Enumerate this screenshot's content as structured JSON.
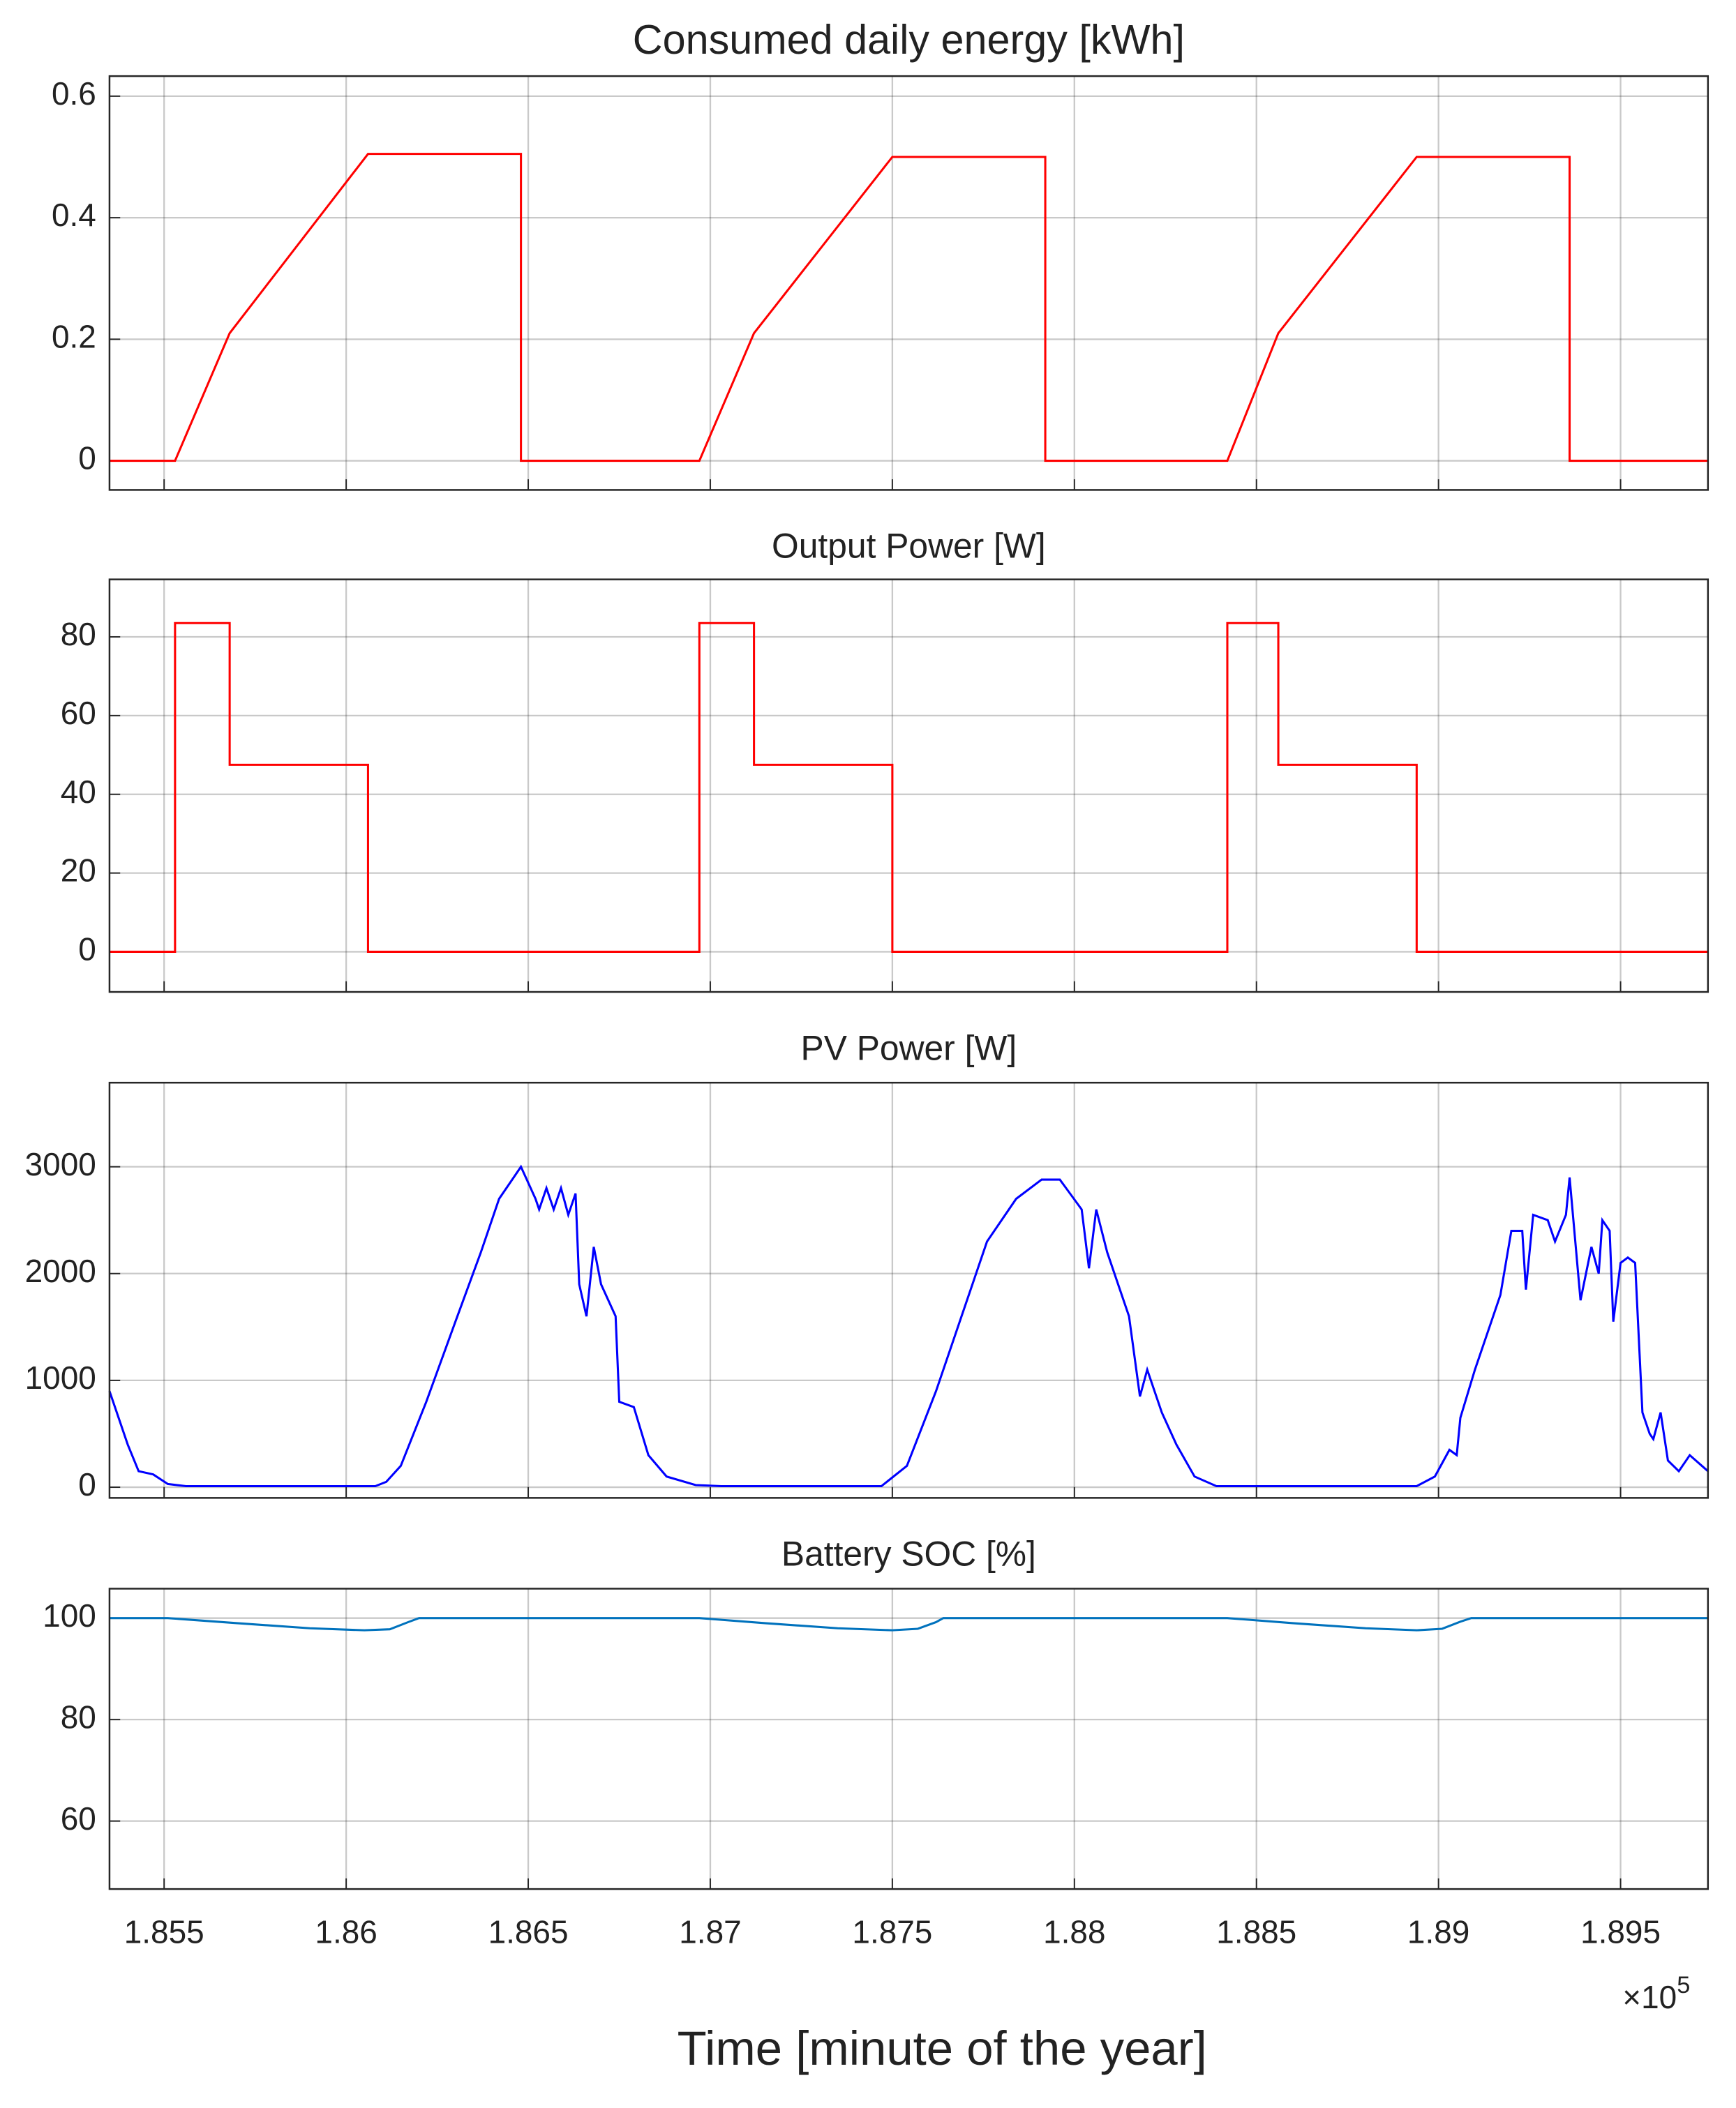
{
  "chart_data": [
    {
      "type": "line",
      "title": "Consumed daily energy [kWh]",
      "x": [
        1.8535,
        1.8553,
        1.8568,
        1.8606,
        1.8648,
        1.8648,
        1.8697,
        1.8712,
        1.875,
        1.8792,
        1.8792,
        1.8842,
        1.8856,
        1.8894,
        1.8936,
        1.8936,
        1.8974
      ],
      "series": [
        {
          "color": "#ff0000",
          "values": [
            0,
            0,
            0.21,
            0.505,
            0.505,
            0,
            0,
            0.21,
            0.5,
            0.5,
            0,
            0,
            0.21,
            0.5,
            0.5,
            0,
            0
          ]
        }
      ],
      "xlim": [
        1.8535,
        1.8974
      ],
      "xticks": [
        1.855,
        1.86,
        1.865,
        1.87,
        1.875,
        1.88,
        1.885,
        1.89,
        1.895
      ],
      "ylim": [
        -0.048,
        0.633
      ],
      "yticks": [
        0,
        0.2,
        0.4,
        0.6
      ],
      "grid": true
    },
    {
      "type": "line",
      "title": "Output Power [W]",
      "x": [
        1.8535,
        1.8553,
        1.8553,
        1.8568,
        1.8568,
        1.8606,
        1.8606,
        1.8697,
        1.8697,
        1.8712,
        1.8712,
        1.875,
        1.875,
        1.8842,
        1.8842,
        1.8856,
        1.8856,
        1.8894,
        1.8894,
        1.8974
      ],
      "series": [
        {
          "color": "#ff0000",
          "values": [
            0,
            0,
            83.5,
            83.5,
            47.5,
            47.5,
            0,
            0,
            83.5,
            83.5,
            47.5,
            47.5,
            0,
            0,
            83.5,
            83.5,
            47.5,
            47.5,
            0,
            0
          ]
        }
      ],
      "xlim": [
        1.8535,
        1.8974
      ],
      "xticks": [
        1.855,
        1.86,
        1.865,
        1.87,
        1.875,
        1.88,
        1.885,
        1.89,
        1.895
      ],
      "ylim": [
        -10.2,
        94.6
      ],
      "yticks": [
        0,
        20,
        40,
        60,
        80
      ],
      "grid": true
    },
    {
      "type": "line",
      "title": "PV Power [W]",
      "x": [
        1.8535,
        1.854,
        1.8543,
        1.8547,
        1.8551,
        1.8556,
        1.8578,
        1.8608,
        1.8611,
        1.8615,
        1.8622,
        1.863,
        1.8637,
        1.8642,
        1.8646,
        1.8648,
        1.8652,
        1.8653,
        1.8655,
        1.8657,
        1.8659,
        1.8661,
        1.8663,
        1.8664,
        1.8666,
        1.8668,
        1.867,
        1.8674,
        1.8675,
        1.8679,
        1.8683,
        1.8688,
        1.8696,
        1.8703,
        1.8747,
        1.8754,
        1.8762,
        1.8769,
        1.8776,
        1.8784,
        1.8791,
        1.8796,
        1.8802,
        1.8804,
        1.8806,
        1.8809,
        1.8815,
        1.8818,
        1.882,
        1.8824,
        1.8828,
        1.8833,
        1.8839,
        1.8894,
        1.8899,
        1.8903,
        1.8905,
        1.8906,
        1.891,
        1.8914,
        1.8917,
        1.892,
        1.8923,
        1.8924,
        1.8926,
        1.893,
        1.8932,
        1.8935,
        1.8936,
        1.8939,
        1.8942,
        1.8944,
        1.8945,
        1.8947,
        1.8948,
        1.895,
        1.8952,
        1.8954,
        1.8956,
        1.8958,
        1.8959,
        1.8961,
        1.8963,
        1.8966,
        1.8969,
        1.8974
      ],
      "series": [
        {
          "color": "#0000ff",
          "values": [
            900,
            400,
            150,
            120,
            30,
            10,
            10,
            10,
            50,
            200,
            800,
            1550,
            2200,
            2700,
            2900,
            3000,
            2700,
            2600,
            2800,
            2600,
            2800,
            2550,
            2750,
            1900,
            1600,
            2250,
            1900,
            1600,
            800,
            750,
            300,
            100,
            20,
            10,
            10,
            200,
            900,
            1600,
            2300,
            2700,
            2880,
            2880,
            2600,
            2050,
            2600,
            2200,
            1600,
            850,
            1100,
            700,
            400,
            100,
            10,
            10,
            100,
            350,
            300,
            650,
            1100,
            1500,
            1800,
            2400,
            2400,
            1850,
            2550,
            2500,
            2300,
            2550,
            2900,
            1750,
            2250,
            2000,
            2500,
            2400,
            1550,
            2100,
            2150,
            2100,
            700,
            500,
            450,
            700,
            250,
            150,
            300,
            150
          ]
        }
      ],
      "xlim": [
        1.8535,
        1.8974
      ],
      "xticks": [
        1.855,
        1.86,
        1.865,
        1.87,
        1.875,
        1.88,
        1.885,
        1.89,
        1.895
      ],
      "ylim": [
        -100,
        3787
      ],
      "yticks": [
        0,
        1000,
        2000,
        3000
      ],
      "grid": true
    },
    {
      "type": "line",
      "title": "Battery SOC [%]",
      "x": [
        1.8535,
        1.8551,
        1.857,
        1.859,
        1.8605,
        1.8612,
        1.8617,
        1.862,
        1.8697,
        1.8715,
        1.8735,
        1.875,
        1.8757,
        1.8762,
        1.8764,
        1.8842,
        1.886,
        1.888,
        1.8894,
        1.8901,
        1.8906,
        1.8909,
        1.8974
      ],
      "series": [
        {
          "color": "#0072bd",
          "values": [
            100,
            100,
            99,
            98,
            97.6,
            97.8,
            99.2,
            100,
            100,
            99,
            98,
            97.6,
            97.9,
            99.2,
            100,
            100,
            99,
            98,
            97.6,
            97.9,
            99.3,
            100,
            100
          ]
        }
      ],
      "xlim": [
        1.8535,
        1.8974
      ],
      "xticks": [
        1.855,
        1.86,
        1.865,
        1.87,
        1.875,
        1.88,
        1.885,
        1.89,
        1.895
      ],
      "ylim": [
        46.6,
        105.8
      ],
      "yticks": [
        60,
        80,
        100
      ],
      "grid": true,
      "x_scale_label": {
        "base": "×10",
        "exponent": "5"
      },
      "xlabel": "Time [minute of the year]"
    }
  ]
}
